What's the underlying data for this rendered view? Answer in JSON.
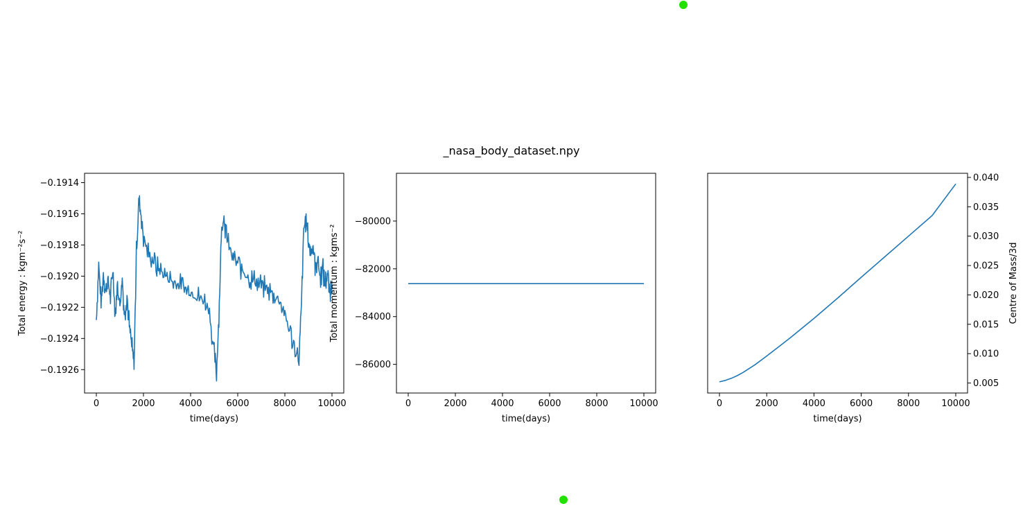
{
  "figure": {
    "title": "_nasa_body_dataset.npy",
    "line_color": "#1f77b4",
    "marker_color": "#22e000"
  },
  "chart_data": [
    {
      "type": "line",
      "title": "",
      "xlabel": "time(days)",
      "ylabel": "Total energy : kgm⁻²s⁻²",
      "xlim": [
        -500,
        10500
      ],
      "ylim": [
        -0.19275,
        -0.19134
      ],
      "xticks": [
        0,
        2000,
        4000,
        6000,
        8000,
        10000
      ],
      "xtick_labels": [
        "0",
        "2000",
        "4000",
        "6000",
        "8000",
        "10000"
      ],
      "yticks": [
        -0.1926,
        -0.1924,
        -0.1922,
        -0.192,
        -0.1918,
        -0.1916,
        -0.1914
      ],
      "ytick_labels": [
        "−0.1926",
        "−0.1924",
        "−0.1922",
        "−0.1920",
        "−0.1918",
        "−0.1916",
        "−0.1914"
      ],
      "yaxis_side": "left",
      "series": [
        {
          "x": [
            0,
            100,
            200,
            300,
            400,
            500,
            600,
            700,
            800,
            900,
            1000,
            1100,
            1200,
            1300,
            1400,
            1500,
            1600,
            1700,
            1800,
            1900,
            2000,
            2200,
            2400,
            2600,
            2800,
            3000,
            3200,
            3400,
            3600,
            3800,
            4000,
            4200,
            4400,
            4600,
            4800,
            5000,
            5100,
            5200,
            5300,
            5400,
            5500,
            5600,
            5800,
            6000,
            6200,
            6400,
            6600,
            6800,
            7000,
            7200,
            7400,
            7600,
            7800,
            8000,
            8200,
            8400,
            8600,
            8700,
            8800,
            8900,
            9000,
            9100,
            9200,
            9300,
            9400,
            9500,
            9600,
            9700,
            9800,
            9900,
            10000
          ],
          "y": [
            -0.19228,
            -0.19192,
            -0.19218,
            -0.19198,
            -0.1921,
            -0.19203,
            -0.19214,
            -0.19196,
            -0.19224,
            -0.19206,
            -0.19219,
            -0.19202,
            -0.19226,
            -0.19212,
            -0.19232,
            -0.19245,
            -0.19257,
            -0.19185,
            -0.19152,
            -0.1916,
            -0.19175,
            -0.19185,
            -0.1919,
            -0.19195,
            -0.19198,
            -0.192,
            -0.19203,
            -0.19205,
            -0.19206,
            -0.19208,
            -0.1921,
            -0.19212,
            -0.19214,
            -0.19216,
            -0.19222,
            -0.1925,
            -0.19262,
            -0.19225,
            -0.19175,
            -0.1916,
            -0.19172,
            -0.1918,
            -0.19188,
            -0.19192,
            -0.19196,
            -0.192,
            -0.19202,
            -0.19204,
            -0.19206,
            -0.19208,
            -0.1921,
            -0.19213,
            -0.19216,
            -0.19225,
            -0.19235,
            -0.19245,
            -0.19255,
            -0.1922,
            -0.1917,
            -0.19163,
            -0.19178,
            -0.19185,
            -0.1918,
            -0.19195,
            -0.19188,
            -0.19202,
            -0.19194,
            -0.19206,
            -0.19198,
            -0.1921,
            -0.19205
          ],
          "jitter_amplitude": 8e-05
        }
      ]
    },
    {
      "type": "line",
      "title": "",
      "xlabel": "time(days)",
      "ylabel": "Total momentum : kgms⁻²",
      "xlim": [
        -500,
        10500
      ],
      "ylim": [
        -87200,
        -78000
      ],
      "xticks": [
        0,
        2000,
        4000,
        6000,
        8000,
        10000
      ],
      "xtick_labels": [
        "0",
        "2000",
        "4000",
        "6000",
        "8000",
        "10000"
      ],
      "yticks": [
        -86000,
        -84000,
        -82000,
        -80000
      ],
      "ytick_labels": [
        "−86000",
        "−84000",
        "−82000",
        "−80000"
      ],
      "yaxis_side": "left",
      "series": [
        {
          "x": [
            0,
            10000
          ],
          "y": [
            -82620,
            -82620
          ],
          "jitter_amplitude": 0
        }
      ]
    },
    {
      "type": "line",
      "title": "",
      "xlabel": "time(days)",
      "ylabel": "Centre of Mass/3d",
      "xlim": [
        -500,
        10500
      ],
      "ylim": [
        0.0033,
        0.0407
      ],
      "xticks": [
        0,
        2000,
        4000,
        6000,
        8000,
        10000
      ],
      "xtick_labels": [
        "0",
        "2000",
        "4000",
        "6000",
        "8000",
        "10000"
      ],
      "yticks": [
        0.005,
        0.01,
        0.015,
        0.02,
        0.025,
        0.03,
        0.035,
        0.04
      ],
      "ytick_labels": [
        "0.005",
        "0.010",
        "0.015",
        "0.020",
        "0.025",
        "0.030",
        "0.035",
        "0.040"
      ],
      "yaxis_side": "right",
      "series": [
        {
          "x": [
            0,
            250,
            500,
            750,
            1000,
            1500,
            2000,
            2500,
            3000,
            4000,
            5000,
            6000,
            7000,
            8000,
            9000,
            10000
          ],
          "y": [
            0.0052,
            0.00545,
            0.0058,
            0.00625,
            0.0068,
            0.0081,
            0.0096,
            0.01115,
            0.0127,
            0.016,
            0.01945,
            0.023,
            0.0265,
            0.03,
            0.0335,
            0.0389
          ],
          "jitter_amplitude": 0
        }
      ]
    }
  ]
}
